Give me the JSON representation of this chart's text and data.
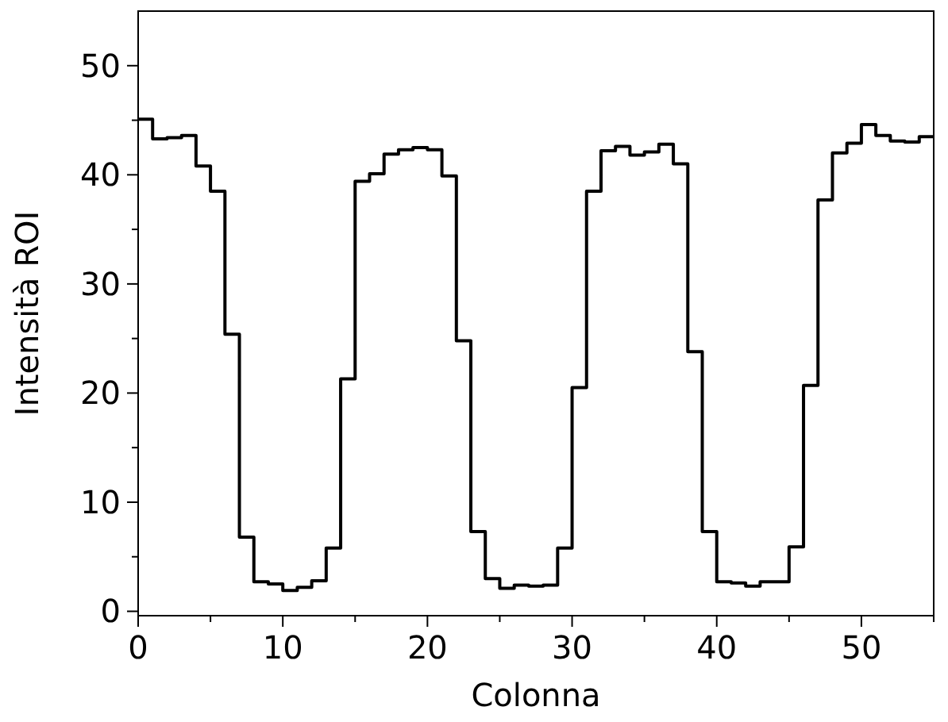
{
  "chart_data": {
    "type": "step",
    "xlabel": "Colonna",
    "ylabel": "Intensità ROI",
    "x": [
      0,
      1,
      2,
      3,
      4,
      5,
      6,
      7,
      8,
      9,
      10,
      11,
      12,
      13,
      14,
      15,
      16,
      17,
      18,
      19,
      20,
      21,
      22,
      23,
      24,
      25,
      26,
      27,
      28,
      29,
      30,
      31,
      32,
      33,
      34,
      35,
      36,
      37,
      38,
      39,
      40,
      41,
      42,
      43,
      44,
      45,
      46,
      47,
      48,
      49,
      50,
      51,
      52,
      53,
      54,
      55
    ],
    "series": [
      {
        "color": "#000000",
        "values": [
          45.1,
          43.3,
          43.4,
          43.6,
          40.8,
          38.5,
          25.4,
          6.8,
          2.7,
          2.5,
          1.9,
          2.2,
          2.8,
          5.8,
          21.3,
          39.4,
          40.1,
          41.9,
          42.3,
          42.5,
          42.3,
          39.9,
          24.8,
          7.3,
          3.0,
          2.1,
          2.4,
          2.3,
          2.4,
          5.8,
          20.5,
          38.5,
          42.2,
          42.6,
          41.8,
          42.1,
          42.8,
          41.0,
          23.8,
          7.3,
          2.7,
          2.6,
          2.3,
          2.7,
          2.7,
          5.9,
          20.7,
          37.7,
          42.0,
          42.9,
          44.6,
          43.6,
          43.1,
          43.0,
          43.5,
          43.5
        ]
      }
    ],
    "xlim": [
      0,
      55
    ],
    "ylim": [
      -0.4,
      55
    ],
    "xticks": [
      0,
      {
        "value": 5,
        "label": null
      },
      10,
      {
        "value": 15,
        "label": null
      },
      20,
      {
        "value": 25,
        "label": null
      },
      30,
      {
        "value": 35,
        "label": null
      },
      40,
      {
        "value": 45,
        "label": null
      },
      50,
      {
        "value": 55,
        "label": null
      }
    ],
    "yticks": [
      0,
      {
        "value": 5,
        "label": null
      },
      10,
      {
        "value": 15,
        "label": null
      },
      20,
      {
        "value": 25,
        "label": null
      },
      30,
      {
        "value": 35,
        "label": null
      },
      40,
      {
        "value": 45,
        "label": null
      },
      50
    ],
    "grid": false,
    "line_style": "solid"
  }
}
